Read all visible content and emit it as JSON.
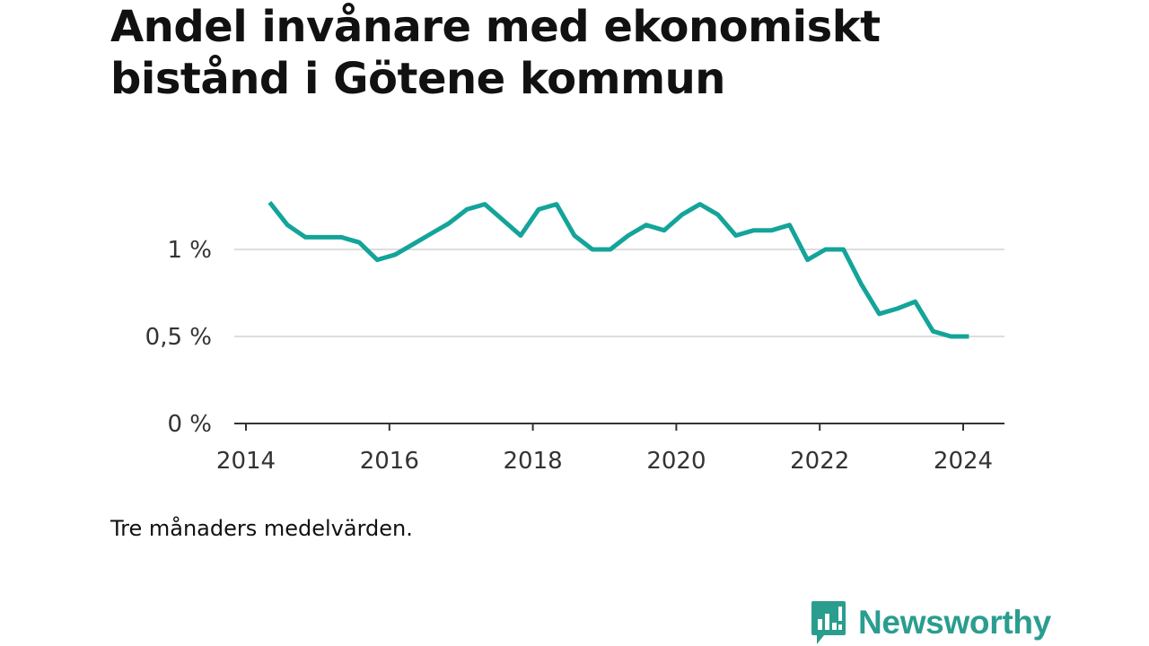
{
  "title": "Andel invånare med ekonomiskt bistånd i Götene kommun",
  "note": "Tre månaders medelvärden.",
  "brand": {
    "name": "Newsworthy",
    "icon": "bar-chart-speech-bubble-icon",
    "color": "#2a9d8f"
  },
  "colors": {
    "line": "#14a49a",
    "grid": "#dddddd",
    "axis": "#333333"
  },
  "chart_data": {
    "type": "line",
    "title": "Andel invånare med ekonomiskt bistånd i Götene kommun",
    "xlabel": "",
    "ylabel": "",
    "x_ticks": [
      "2014",
      "2016",
      "2018",
      "2020",
      "2022",
      "2024"
    ],
    "y_ticks": [
      {
        "value": 0,
        "label": "0 %"
      },
      {
        "value": 0.5,
        "label": "0,5 %"
      },
      {
        "value": 1,
        "label": "1 %"
      }
    ],
    "xlim": [
      2014,
      2024.6
    ],
    "ylim": [
      0,
      1.3
    ],
    "grid": true,
    "legend": "none",
    "series": [
      {
        "x": [
          2014.33,
          2014.58,
          2014.83,
          2015.08,
          2015.33,
          2015.58,
          2015.83,
          2016.08,
          2016.33,
          2016.58,
          2016.83,
          2017.08,
          2017.33,
          2017.58,
          2017.83,
          2018.08,
          2018.33,
          2018.58,
          2018.83,
          2019.08,
          2019.33,
          2019.58,
          2019.83,
          2020.08,
          2020.33,
          2020.58,
          2020.83,
          2021.08,
          2021.33,
          2021.58,
          2021.83,
          2022.08,
          2022.33,
          2022.58,
          2022.83,
          2023.08,
          2023.33,
          2023.58,
          2023.83,
          2024.08
        ],
        "y": [
          1.27,
          1.14,
          1.07,
          1.07,
          1.07,
          1.04,
          0.94,
          0.97,
          1.03,
          1.09,
          1.15,
          1.23,
          1.26,
          1.17,
          1.08,
          1.23,
          1.26,
          1.08,
          1.0,
          1.0,
          1.08,
          1.14,
          1.11,
          1.2,
          1.26,
          1.2,
          1.08,
          1.11,
          1.11,
          1.14,
          0.94,
          1.0,
          1.0,
          0.8,
          0.63,
          0.66,
          0.7,
          0.53,
          0.5,
          0.5
        ]
      }
    ]
  }
}
